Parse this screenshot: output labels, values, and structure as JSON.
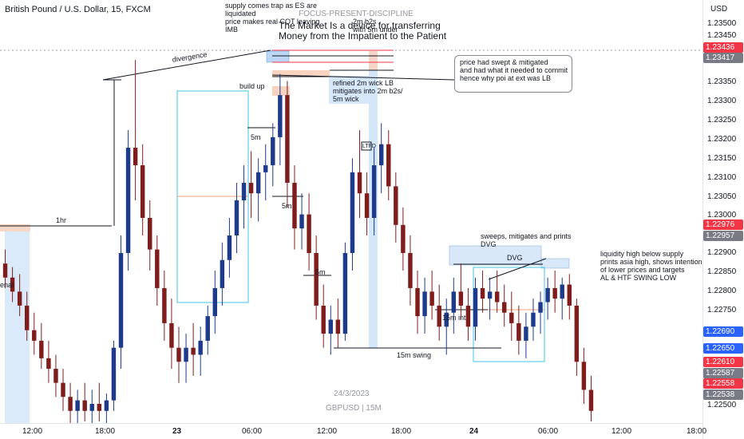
{
  "header": {
    "symbol_line": "British Pound / U.S. Dollar, 15, FXCM"
  },
  "price_scale": {
    "currency": "USD",
    "labels": [
      "1.23500",
      "1.23450",
      "1.23350",
      "1.23300",
      "1.23250",
      "1.23200",
      "1.23150",
      "1.23100",
      "1.23050",
      "1.23000",
      "1.22900",
      "1.22850",
      "1.22800",
      "1.22750",
      "1.22500"
    ],
    "tags": [
      {
        "text": "1.23436",
        "color": "#f23645"
      },
      {
        "text": "1.23417",
        "color": "#787b86"
      },
      {
        "text": "1.22976",
        "color": "#f23645"
      },
      {
        "text": "1.22957",
        "color": "#787b86"
      },
      {
        "text": "1.22690",
        "color": "#2962ff"
      },
      {
        "text": "1.22650",
        "color": "#2962ff"
      },
      {
        "text": "1.22610",
        "color": "#f23645"
      },
      {
        "text": "1.22587",
        "color": "#787b86"
      },
      {
        "text": "1.22558",
        "color": "#f23645"
      },
      {
        "text": "1.22538",
        "color": "#787b86"
      }
    ]
  },
  "time_axis": {
    "labels": [
      {
        "text": "12:00",
        "bold": false
      },
      {
        "text": "18:00",
        "bold": false
      },
      {
        "text": "23",
        "bold": true
      },
      {
        "text": "06:00",
        "bold": false
      },
      {
        "text": "12:00",
        "bold": false
      },
      {
        "text": "18:00",
        "bold": false
      },
      {
        "text": "24",
        "bold": true
      },
      {
        "text": "06:00",
        "bold": false
      },
      {
        "text": "12:00",
        "bold": false
      },
      {
        "text": "18:00",
        "bold": false
      }
    ]
  },
  "annotations": {
    "top_notes": "supply comes trap as ES are\nliquidated\nprice makes real COT leaving\nIMB",
    "focus": "FOCUS-PRESENT-DISCIPLINE",
    "quote": "The Market Is a device for transferring\nMoney from the Impatient to the Patient",
    "quote_overlap": "2m b2s\nwith 5m under",
    "divergence": "divergence",
    "build": "build up",
    "refined": "refined 2m wick LB\nmitigates into 2m b2s/\n5m wick",
    "callout": "price had swept & mitigated\nand had what it needed to commit\nhence why poi at ext was LB",
    "five_m_a": "5m",
    "five_m_b": "5m",
    "five_m_c": "5m",
    "one_hr": "1hr",
    "ltfd": "LTFD",
    "sweeps": "sweeps, mitigates and prints\nDVG",
    "dvg": "DVG",
    "fifteen_int": "15m int",
    "fifteen_swing": "15m swing",
    "liquidity": "liquidity high below supply\nprints asia high, shows intention\nof lower prices and targets\nAL & HTF SWING LOW",
    "left_cut": "enal"
  },
  "watermark": {
    "date": "24/3/2023",
    "symbol": "GBPUSD | 15M"
  },
  "chart_data": {
    "type": "candlestick",
    "symbol": "GBPUSD",
    "timeframe": "15",
    "ylim": [
      1.2247,
      1.2358
    ],
    "colors": {
      "up": "#1e3a8a",
      "down": "#7f1d1d"
    },
    "candles": [
      [
        1.2292,
        1.2296,
        1.2285,
        1.2288
      ],
      [
        1.2288,
        1.2291,
        1.2281,
        1.2284
      ],
      [
        1.2284,
        1.2289,
        1.2277,
        1.228
      ],
      [
        1.228,
        1.2284,
        1.227,
        1.2273
      ],
      [
        1.2273,
        1.2278,
        1.2266,
        1.227
      ],
      [
        1.227,
        1.2275,
        1.2262,
        1.2265
      ],
      [
        1.2265,
        1.227,
        1.2258,
        1.2262
      ],
      [
        1.2262,
        1.2266,
        1.2254,
        1.2258
      ],
      [
        1.2258,
        1.2262,
        1.225,
        1.2254
      ],
      [
        1.2254,
        1.2258,
        1.2246,
        1.225
      ],
      [
        1.225,
        1.2256,
        1.2246,
        1.2253
      ],
      [
        1.2253,
        1.2258,
        1.2247,
        1.225
      ],
      [
        1.225,
        1.2256,
        1.2246,
        1.2252
      ],
      [
        1.2252,
        1.2258,
        1.2247,
        1.225
      ],
      [
        1.225,
        1.2255,
        1.2246,
        1.2253
      ],
      [
        1.2253,
        1.227,
        1.225,
        1.2268
      ],
      [
        1.2268,
        1.23,
        1.2262,
        1.2295
      ],
      [
        1.2295,
        1.233,
        1.229,
        1.2325
      ],
      [
        1.2325,
        1.235,
        1.231,
        1.232
      ],
      [
        1.232,
        1.2326,
        1.23,
        1.2305
      ],
      [
        1.2305,
        1.231,
        1.229,
        1.2296
      ],
      [
        1.2296,
        1.23,
        1.228,
        1.2285
      ],
      [
        1.2285,
        1.229,
        1.227,
        1.2275
      ],
      [
        1.2275,
        1.2282,
        1.2262,
        1.2268
      ],
      [
        1.2268,
        1.2274,
        1.2258,
        1.2264
      ],
      [
        1.2264,
        1.2272,
        1.2258,
        1.2268
      ],
      [
        1.2268,
        1.2275,
        1.226,
        1.2266
      ],
      [
        1.2266,
        1.2274,
        1.226,
        1.227
      ],
      [
        1.227,
        1.228,
        1.2266,
        1.2277
      ],
      [
        1.2277,
        1.229,
        1.2272,
        1.2285
      ],
      [
        1.2285,
        1.2298,
        1.228,
        1.2293
      ],
      [
        1.2293,
        1.2305,
        1.2288,
        1.23
      ],
      [
        1.23,
        1.2315,
        1.2295,
        1.231
      ],
      [
        1.231,
        1.232,
        1.2302,
        1.2315
      ],
      [
        1.2315,
        1.2324,
        1.2305,
        1.2312
      ],
      [
        1.2312,
        1.2322,
        1.2304,
        1.2318
      ],
      [
        1.2318,
        1.2326,
        1.231,
        1.232
      ],
      [
        1.232,
        1.2332,
        1.2314,
        1.2328
      ],
      [
        1.2328,
        1.2346,
        1.232,
        1.234
      ],
      [
        1.234,
        1.2344,
        1.2308,
        1.2315
      ],
      [
        1.2315,
        1.232,
        1.2296,
        1.2302
      ],
      [
        1.2302,
        1.2312,
        1.2296,
        1.2306
      ],
      [
        1.2306,
        1.2312,
        1.229,
        1.2295
      ],
      [
        1.2295,
        1.23,
        1.2276,
        1.228
      ],
      [
        1.228,
        1.2286,
        1.2268,
        1.2272
      ],
      [
        1.2272,
        1.228,
        1.2266,
        1.2276
      ],
      [
        1.2276,
        1.2282,
        1.2268,
        1.2272
      ],
      [
        1.2272,
        1.2298,
        1.227,
        1.2295
      ],
      [
        1.2295,
        1.2322,
        1.229,
        1.2318
      ],
      [
        1.2318,
        1.233,
        1.2305,
        1.2312
      ],
      [
        1.2312,
        1.2318,
        1.23,
        1.2305
      ],
      [
        1.2305,
        1.2325,
        1.23,
        1.232
      ],
      [
        1.232,
        1.2332,
        1.2312,
        1.2326
      ],
      [
        1.2326,
        1.233,
        1.231,
        1.2314
      ],
      [
        1.2314,
        1.2318,
        1.2298,
        1.2303
      ],
      [
        1.2303,
        1.2308,
        1.229,
        1.2295
      ],
      [
        1.2295,
        1.23,
        1.228,
        1.2285
      ],
      [
        1.2285,
        1.229,
        1.2272,
        1.2277
      ],
      [
        1.2277,
        1.2288,
        1.2272,
        1.2284
      ],
      [
        1.2284,
        1.229,
        1.2276,
        1.228
      ],
      [
        1.228,
        1.2286,
        1.227,
        1.2274
      ],
      [
        1.2274,
        1.2282,
        1.2266,
        1.2278
      ],
      [
        1.2278,
        1.2288,
        1.2272,
        1.2284
      ],
      [
        1.2284,
        1.2292,
        1.2276,
        1.228
      ],
      [
        1.228,
        1.2285,
        1.227,
        1.2274
      ],
      [
        1.2274,
        1.2288,
        1.227,
        1.2285
      ],
      [
        1.2285,
        1.229,
        1.2278,
        1.2282
      ],
      [
        1.2282,
        1.2288,
        1.2276,
        1.2284
      ],
      [
        1.2284,
        1.229,
        1.2278,
        1.2281
      ],
      [
        1.2281,
        1.2286,
        1.2274,
        1.2278
      ],
      [
        1.2278,
        1.2284,
        1.227,
        1.2275
      ],
      [
        1.2275,
        1.228,
        1.2266,
        1.227
      ],
      [
        1.227,
        1.2278,
        1.2265,
        1.2274
      ],
      [
        1.2274,
        1.2282,
        1.227,
        1.2278
      ],
      [
        1.2278,
        1.2284,
        1.2272,
        1.2281
      ],
      [
        1.2281,
        1.2288,
        1.2276,
        1.2285
      ],
      [
        1.2285,
        1.229,
        1.2278,
        1.2282
      ],
      [
        1.2282,
        1.2288,
        1.2276,
        1.2286
      ],
      [
        1.2286,
        1.2289,
        1.2276,
        1.228
      ],
      [
        1.228,
        1.2282,
        1.226,
        1.2264
      ],
      [
        1.2264,
        1.2268,
        1.2252,
        1.2256
      ],
      [
        1.2256,
        1.226,
        1.2247,
        1.225
      ]
    ]
  }
}
